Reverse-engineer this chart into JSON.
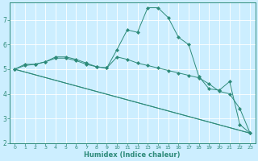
{
  "xlabel": "Humidex (Indice chaleur)",
  "bg_color": "#cceeff",
  "grid_color": "#ffffff",
  "line_color": "#2e8b7a",
  "xlim": [
    -0.5,
    23.5
  ],
  "ylim": [
    2,
    7.7
  ],
  "yticks": [
    2,
    3,
    4,
    5,
    6,
    7
  ],
  "xticks": [
    0,
    1,
    2,
    3,
    4,
    5,
    6,
    7,
    8,
    9,
    10,
    11,
    12,
    13,
    14,
    15,
    16,
    17,
    18,
    19,
    20,
    21,
    22,
    23
  ],
  "series": [
    {
      "x": [
        0,
        1,
        2,
        3,
        4,
        5,
        6,
        7,
        8,
        9,
        10,
        11,
        12,
        13,
        14,
        15,
        16,
        17,
        18,
        19,
        20,
        21,
        22,
        23
      ],
      "y": [
        5.0,
        5.2,
        5.2,
        5.3,
        5.5,
        5.5,
        5.4,
        5.25,
        5.1,
        5.05,
        5.8,
        6.6,
        6.5,
        7.5,
        7.5,
        7.1,
        6.3,
        6.0,
        4.7,
        4.2,
        4.15,
        4.5,
        2.75,
        2.4
      ],
      "marker": "D",
      "ms": 2.0
    },
    {
      "x": [
        0,
        1,
        2,
        3,
        4,
        5,
        6,
        7,
        8,
        9,
        10,
        11,
        12,
        13,
        14,
        15,
        16,
        17,
        18,
        19,
        20,
        21,
        22,
        23
      ],
      "y": [
        5.0,
        5.15,
        5.2,
        5.3,
        5.45,
        5.45,
        5.35,
        5.2,
        5.1,
        5.05,
        5.5,
        5.4,
        5.25,
        5.15,
        5.05,
        4.95,
        4.85,
        4.75,
        4.65,
        4.4,
        4.1,
        4.0,
        3.4,
        2.4
      ],
      "marker": "D",
      "ms": 2.0
    },
    {
      "x": [
        0,
        23
      ],
      "y": [
        5.0,
        2.4
      ],
      "marker": null,
      "ms": 0
    },
    {
      "x": [
        0,
        23
      ],
      "y": [
        5.0,
        2.4
      ],
      "marker": null,
      "ms": 0
    }
  ]
}
